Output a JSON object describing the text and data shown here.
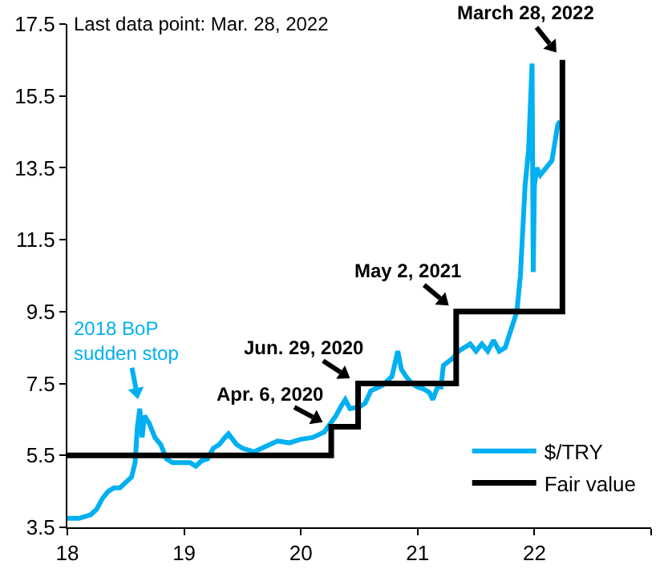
{
  "chart_data": {
    "type": "line",
    "x": [
      18.0,
      18.1,
      18.2,
      18.25,
      18.3,
      18.35,
      18.4,
      18.45,
      18.5,
      18.55,
      18.58,
      18.6,
      18.62,
      18.64,
      18.66,
      18.7,
      18.75,
      18.8,
      18.85,
      18.9,
      19.0,
      19.05,
      19.1,
      19.15,
      19.2,
      19.25,
      19.3,
      19.35,
      19.38,
      19.45,
      19.5,
      19.6,
      19.7,
      19.8,
      19.9,
      20.0,
      20.1,
      20.2,
      20.3,
      20.35,
      20.38,
      20.42,
      20.5,
      20.55,
      20.6,
      20.7,
      20.78,
      20.83,
      20.86,
      20.9,
      20.95,
      21.0,
      21.05,
      21.1,
      21.13,
      21.17,
      21.2,
      21.22,
      21.3,
      21.35,
      21.45,
      21.5,
      21.55,
      21.6,
      21.65,
      21.7,
      21.75,
      21.8,
      21.85,
      21.88,
      21.92,
      21.95,
      21.98,
      21.99,
      22.0,
      22.02,
      22.05,
      22.1,
      22.15,
      22.2,
      22.22
    ],
    "series": [
      {
        "name": "$/TRY",
        "color": "#00b0f0",
        "values": [
          3.75,
          3.75,
          3.85,
          4.0,
          4.3,
          4.5,
          4.6,
          4.6,
          4.75,
          4.9,
          5.3,
          6.3,
          6.8,
          6.0,
          6.6,
          6.4,
          6.0,
          5.8,
          5.4,
          5.3,
          5.3,
          5.3,
          5.2,
          5.35,
          5.4,
          5.7,
          5.8,
          6.0,
          6.1,
          5.8,
          5.7,
          5.6,
          5.75,
          5.9,
          5.85,
          5.95,
          6.0,
          6.15,
          6.6,
          6.9,
          7.05,
          6.8,
          6.85,
          6.95,
          7.3,
          7.45,
          7.7,
          8.4,
          7.9,
          7.7,
          7.5,
          7.4,
          7.35,
          7.25,
          7.05,
          7.4,
          7.4,
          8.0,
          8.2,
          8.4,
          8.6,
          8.4,
          8.6,
          8.4,
          8.7,
          8.4,
          8.5,
          9.0,
          9.5,
          10.5,
          13.0,
          14.0,
          16.4,
          10.6,
          13.0,
          13.5,
          13.3,
          13.5,
          13.7,
          14.7,
          14.8
        ]
      },
      {
        "name": "Fair value",
        "type": "step",
        "color": "#000000",
        "x": [
          18.0,
          20.26,
          20.49,
          21.33,
          22.24
        ],
        "values": [
          5.5,
          6.3,
          7.5,
          9.5,
          16.5
        ]
      }
    ],
    "xlim": [
      18,
      23
    ],
    "xticks": [
      18,
      19,
      20,
      21,
      22,
      {
        "value": 23,
        "label": null
      }
    ],
    "ylim": [
      3.5,
      17.5
    ],
    "yticks": [
      3.5,
      5.5,
      7.5,
      9.5,
      11.5,
      13.5,
      15.5,
      17.5
    ],
    "grid": false,
    "legend": "bottom right",
    "marker": "none",
    "line_style": "solid",
    "annotations": [
      {
        "text": "2018 BoP\nsudden stop",
        "x": 18.62,
        "y": 6.8
      },
      {
        "text": "Apr. 6, 2020",
        "x": 20.26,
        "y": 6.3
      },
      {
        "text": "Jun. 29, 2020",
        "x": 20.49,
        "y": 7.5
      },
      {
        "text": "May 2, 2021",
        "x": 21.33,
        "y": 9.5
      },
      {
        "text": "March 28, 2022",
        "x": 22.24,
        "y": 16.5
      },
      "Last data point: Mar. 28, 2022"
    ]
  }
}
